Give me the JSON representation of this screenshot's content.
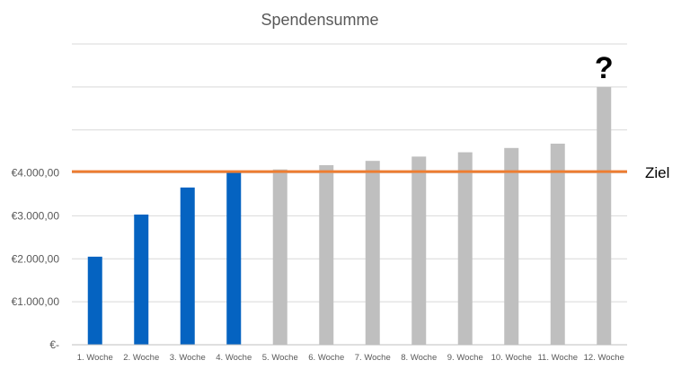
{
  "chart_data": {
    "type": "bar",
    "title": "Spendensumme",
    "xlabel": "",
    "ylabel": "",
    "ylim": [
      0,
      7000
    ],
    "grid": true,
    "ytick_values": [
      0,
      1000,
      2000,
      3000,
      4000
    ],
    "ytick_labels": [
      "€-",
      "€1.000,00",
      "€2.000,00",
      "€3.000,00",
      "€4.000,00"
    ],
    "categories": [
      "1. Woche",
      "2. Woche",
      "3. Woche",
      "4. Woche",
      "5. Woche",
      "6. Woche",
      "7. Woche",
      "8. Woche",
      "9. Woche",
      "10. Woche",
      "11. Woche",
      "12. Woche"
    ],
    "values": [
      2050,
      3030,
      3660,
      4020,
      4080,
      4180,
      4280,
      4380,
      4480,
      4580,
      4680,
      6000
    ],
    "bar_status": [
      "actual",
      "actual",
      "actual",
      "actual",
      "projected",
      "projected",
      "projected",
      "projected",
      "projected",
      "projected",
      "projected",
      "projected"
    ],
    "colors": {
      "actual": "#0563C1",
      "projected": "#BFBFBF",
      "goal_line": "#ED7D31",
      "grid": "#D9D9D9",
      "axis": "#BFBFBF",
      "text": "#595959"
    },
    "goal": {
      "value": 4000,
      "label": "Ziel"
    },
    "annotation": "?"
  }
}
